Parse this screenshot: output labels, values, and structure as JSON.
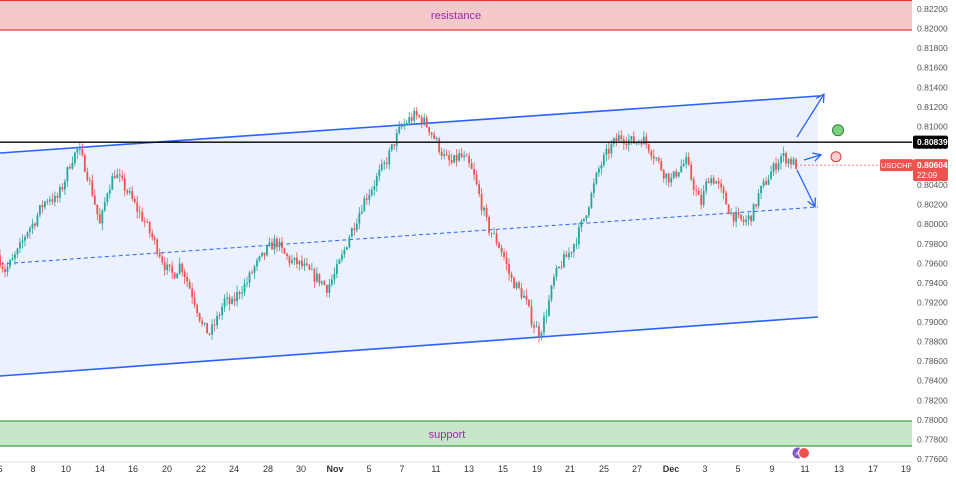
{
  "chart_data": {
    "type": "candlestick",
    "symbol": "USDCHF",
    "current_price": "0.80604",
    "countdown": "22:09",
    "marked_level": "0.80839",
    "ylim": [
      0.7765,
      0.8225
    ],
    "y_ticks": [
      "0.82200",
      "0.82000",
      "0.81800",
      "0.81600",
      "0.81400",
      "0.81200",
      "0.81000",
      "0.80800",
      "0.80600",
      "0.80400",
      "0.80200",
      "0.80000",
      "0.79800",
      "0.79600",
      "0.79400",
      "0.79200",
      "0.79000",
      "0.78800",
      "0.78600",
      "0.78400",
      "0.78200",
      "0.78000",
      "0.77800",
      "0.77600"
    ],
    "x_ticks": [
      {
        "label": "6",
        "bold": false
      },
      {
        "label": "8",
        "bold": false
      },
      {
        "label": "10",
        "bold": false
      },
      {
        "label": "14",
        "bold": false
      },
      {
        "label": "16",
        "bold": false
      },
      {
        "label": "20",
        "bold": false
      },
      {
        "label": "22",
        "bold": false
      },
      {
        "label": "24",
        "bold": false
      },
      {
        "label": "28",
        "bold": false
      },
      {
        "label": "30",
        "bold": false
      },
      {
        "label": "Nov",
        "bold": true
      },
      {
        "label": "5",
        "bold": false
      },
      {
        "label": "7",
        "bold": false
      },
      {
        "label": "11",
        "bold": false
      },
      {
        "label": "13",
        "bold": false
      },
      {
        "label": "15",
        "bold": false
      },
      {
        "label": "19",
        "bold": false
      },
      {
        "label": "21",
        "bold": false
      },
      {
        "label": "25",
        "bold": false
      },
      {
        "label": "27",
        "bold": false
      },
      {
        "label": "Dec",
        "bold": true
      },
      {
        "label": "3",
        "bold": false
      },
      {
        "label": "5",
        "bold": false
      },
      {
        "label": "9",
        "bold": false
      },
      {
        "label": "11",
        "bold": false
      },
      {
        "label": "13",
        "bold": false
      },
      {
        "label": "17",
        "bold": false
      },
      {
        "label": "19",
        "bold": false
      }
    ],
    "zones": {
      "resistance": {
        "label": "resistance",
        "top": 0.8225,
        "bottom": 0.8199,
        "color": "#f5c9cc",
        "edge": "#e53935",
        "text_color": "#9c27b0"
      },
      "support": {
        "label": "support",
        "top": 0.77993,
        "bottom": 0.77745,
        "color": "#c8e6c9",
        "edge": "#43a047",
        "text_color": "#9c27b0"
      }
    },
    "channel_color": "#2962ff",
    "bull_color": "#26a69a",
    "bear_color": "#ef5350",
    "path": [
      0.7968,
      0.7953,
      0.7962,
      0.7975,
      0.7993,
      0.8002,
      0.8018,
      0.8028,
      0.8024,
      0.8041,
      0.8065,
      0.8077,
      0.8058,
      0.8031,
      0.7998,
      0.8035,
      0.8052,
      0.8042,
      0.803,
      0.8016,
      0.8004,
      0.7988,
      0.7973,
      0.7955,
      0.7948,
      0.796,
      0.794,
      0.792,
      0.7895,
      0.7888,
      0.7903,
      0.7922,
      0.7918,
      0.7932,
      0.794,
      0.7955,
      0.7965,
      0.7975,
      0.7983,
      0.797,
      0.7962,
      0.796,
      0.7955,
      0.7948,
      0.7943,
      0.7935,
      0.7948,
      0.7966,
      0.7988,
      0.8005,
      0.8024,
      0.8036,
      0.805,
      0.8063,
      0.8081,
      0.8098,
      0.8106,
      0.8111,
      0.8107,
      0.8097,
      0.8083,
      0.8068,
      0.8062,
      0.807,
      0.8065,
      0.805,
      0.8022,
      0.7996,
      0.7985,
      0.797,
      0.7945,
      0.7935,
      0.7924,
      0.79,
      0.7888,
      0.7912,
      0.7945,
      0.796,
      0.797,
      0.7985,
      0.8005,
      0.8028,
      0.8055,
      0.807,
      0.8082,
      0.809,
      0.8086,
      0.8084,
      0.8088,
      0.8078,
      0.8066,
      0.8052,
      0.8045,
      0.8057,
      0.8064,
      0.804,
      0.802,
      0.8048,
      0.8045,
      0.803,
      0.8012,
      0.8005,
      0.8002,
      0.801,
      0.8032,
      0.8045,
      0.8058,
      0.807,
      0.8066,
      0.80604
    ],
    "predictions": {
      "up_target": 0.8133,
      "mid_target": 0.8071,
      "down_target": 0.8018,
      "green_marker": 0.8096,
      "red_marker": 0.8069
    }
  }
}
